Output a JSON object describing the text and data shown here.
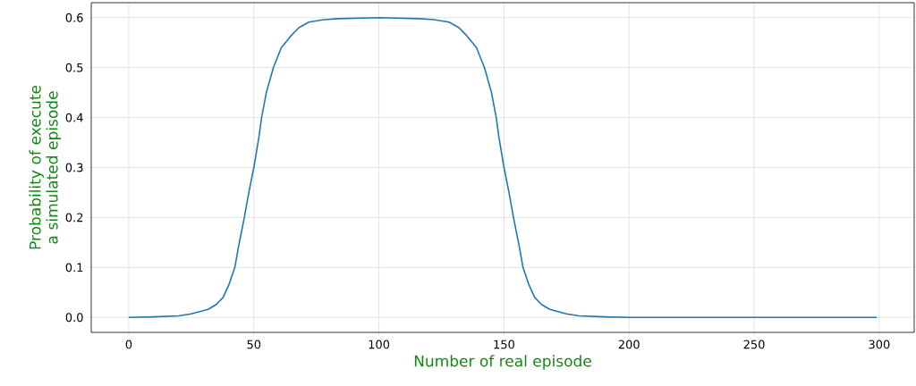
{
  "chart_data": {
    "type": "line",
    "xlabel": "Number of real episode",
    "ylabel": "Probability of execute a simulated episode",
    "x": [
      0,
      10,
      20,
      25,
      31.7,
      35,
      37.7,
      40,
      42.4,
      44,
      46.2,
      48,
      50,
      52,
      53.1,
      55,
      57.8,
      61,
      64.9,
      68,
      72,
      78,
      84,
      100,
      116,
      122,
      128,
      132,
      135.1,
      139,
      142.2,
      145,
      146.9,
      148,
      150,
      152,
      153.8,
      156,
      157.6,
      160,
      162.3,
      165,
      168.3,
      175,
      180,
      190,
      200,
      250,
      299
    ],
    "series": [
      {
        "color": "#1f77b4",
        "values": [
          0,
          0.001,
          0.003,
          0.007,
          0.016,
          0.026,
          0.04,
          0.065,
          0.1,
          0.145,
          0.2,
          0.25,
          0.3,
          0.36,
          0.4,
          0.45,
          0.5,
          0.54,
          0.564,
          0.58,
          0.591,
          0.596,
          0.598,
          0.6,
          0.598,
          0.596,
          0.591,
          0.58,
          0.564,
          0.54,
          0.5,
          0.45,
          0.4,
          0.36,
          0.3,
          0.25,
          0.2,
          0.145,
          0.1,
          0.065,
          0.04,
          0.026,
          0.016,
          0.007,
          0.003,
          0.001,
          0,
          0,
          0
        ]
      }
    ],
    "xlim": [
      -15,
      314
    ],
    "ylim": [
      -0.03,
      0.63
    ],
    "xticks": [
      0,
      50,
      100,
      150,
      200,
      250,
      300
    ],
    "yticks": [
      {
        "value": 0,
        "label": "0.0"
      },
      {
        "value": 0.1,
        "label": "0.1"
      },
      {
        "value": 0.2,
        "label": "0.2"
      },
      {
        "value": 0.3,
        "label": "0.3"
      },
      {
        "value": 0.4,
        "label": "0.4"
      },
      {
        "value": 0.5,
        "label": "0.5"
      },
      {
        "value": 0.6,
        "label": "0.6"
      }
    ],
    "grid": true,
    "marker": "none",
    "line_style": "solid"
  }
}
